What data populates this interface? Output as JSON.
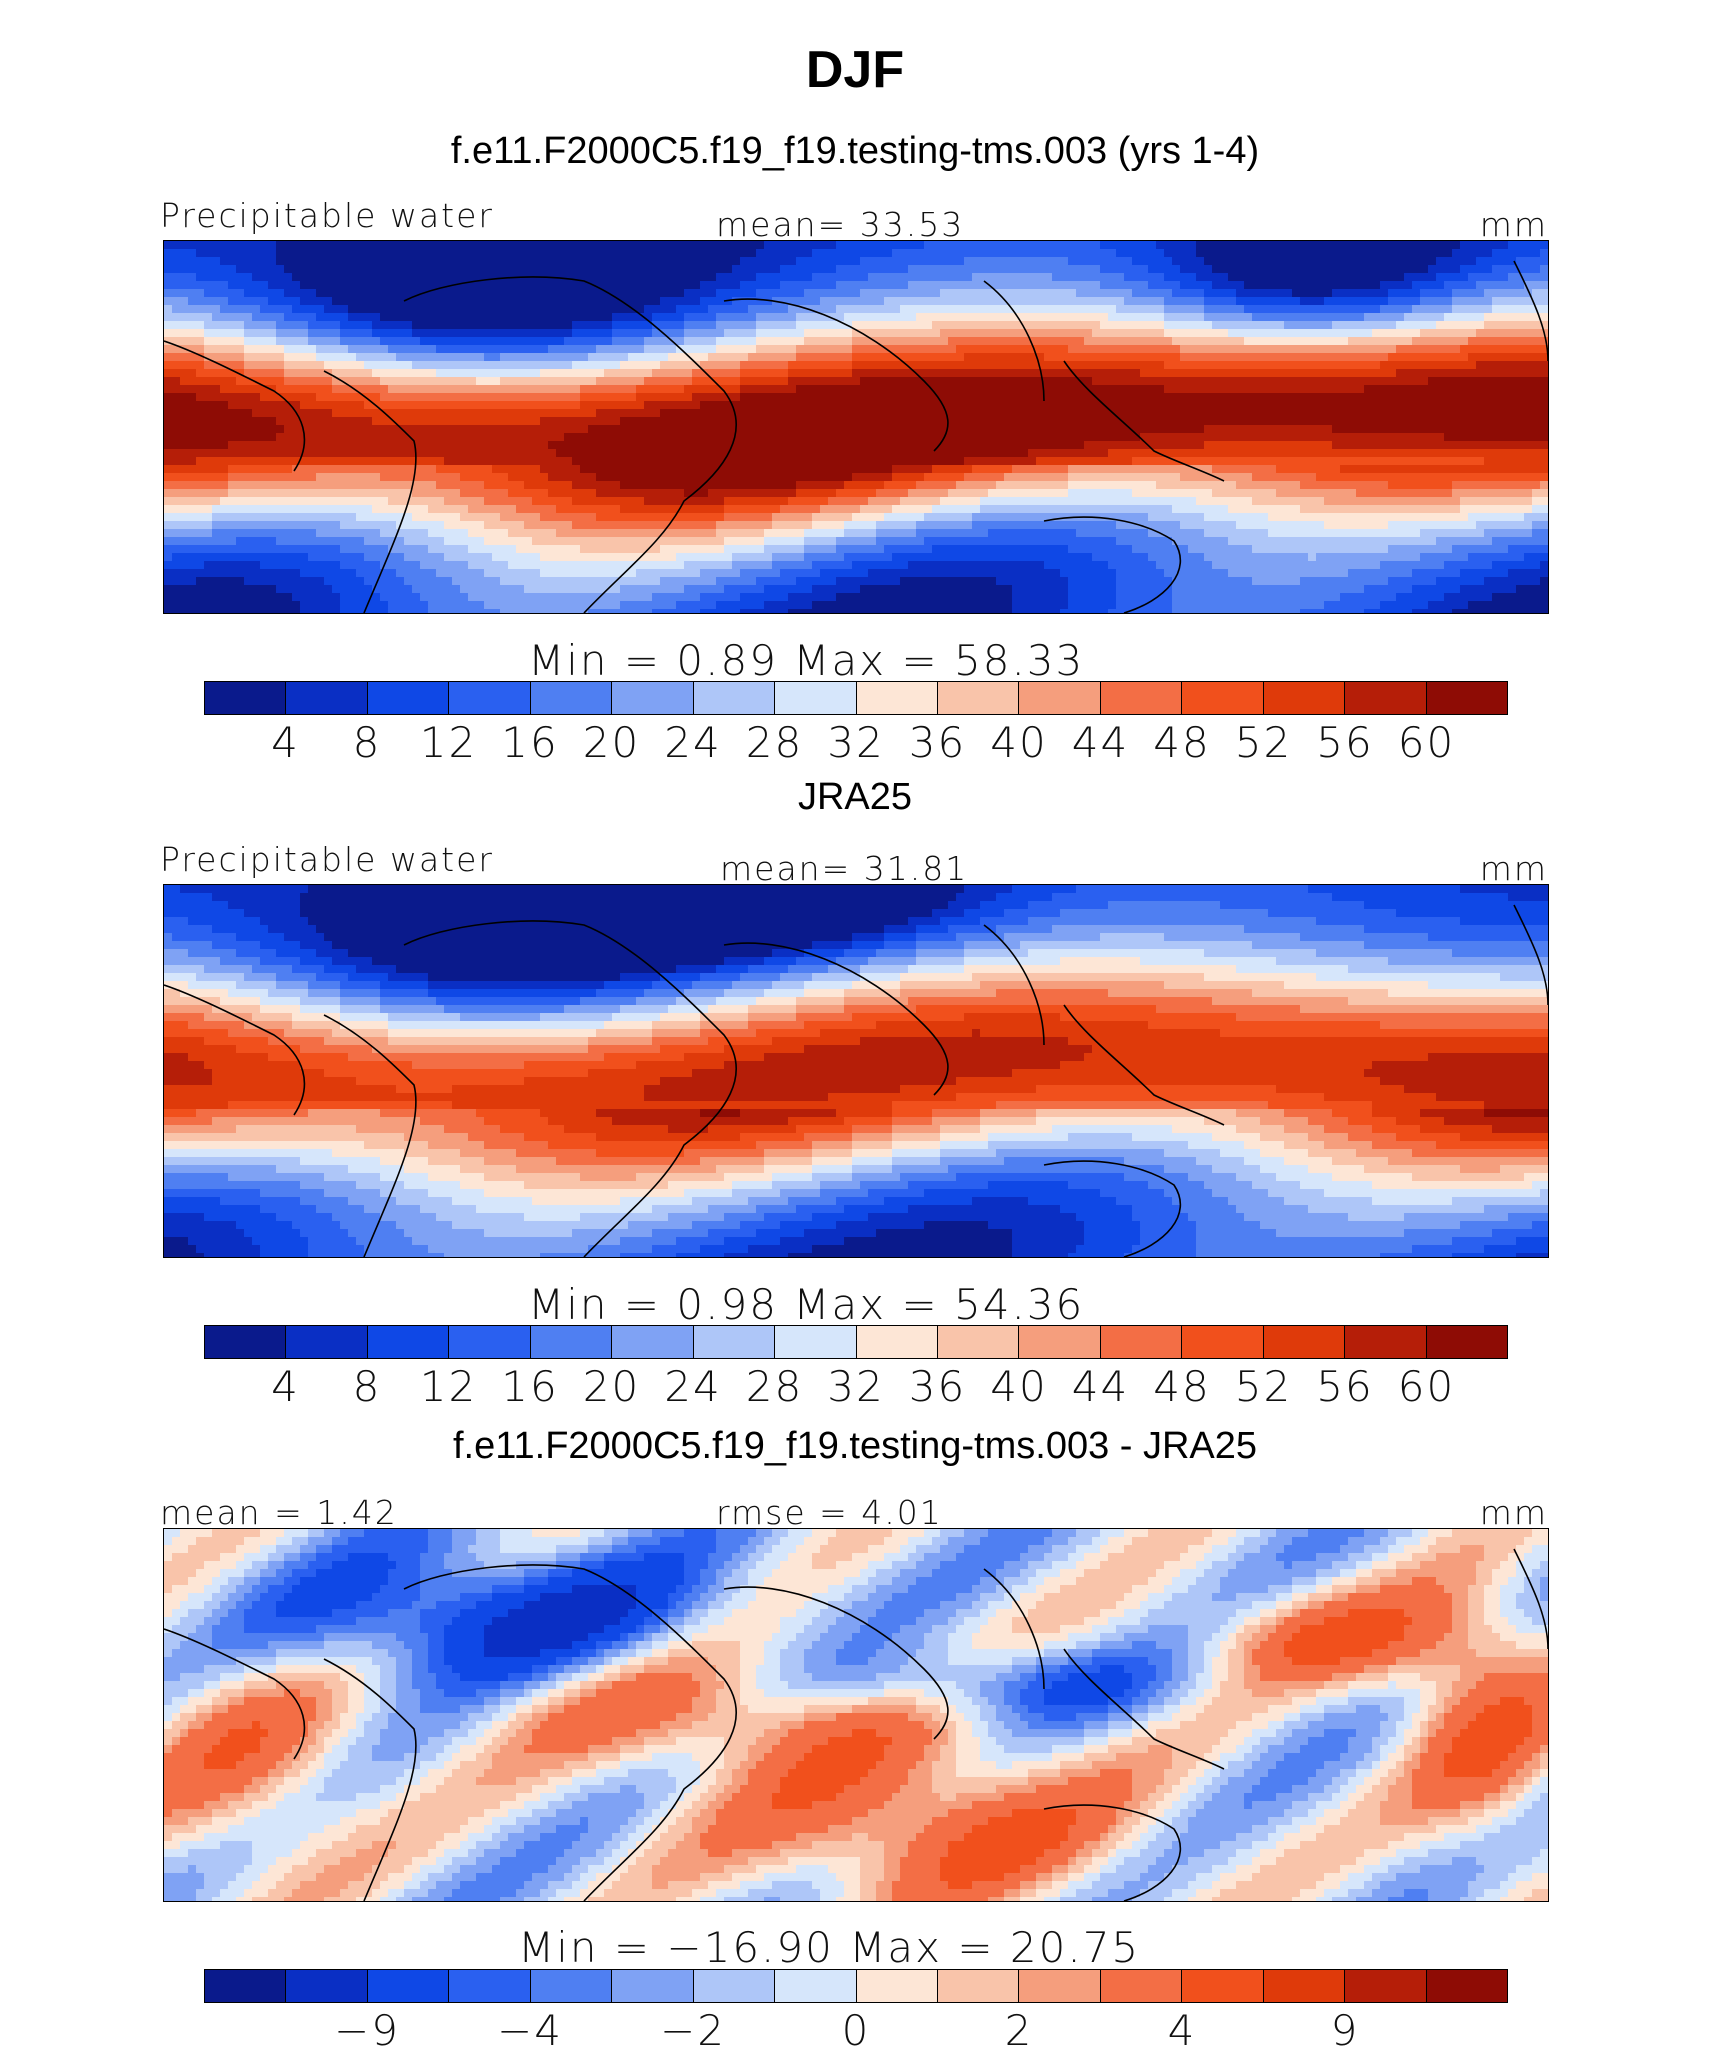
{
  "title": "DJF",
  "colors": [
    "#0a1a8c",
    "#0a2fc4",
    "#0f48e6",
    "#2a60f0",
    "#4f7ff2",
    "#7fa2f4",
    "#aec6f8",
    "#d6e6fb",
    "#fde6d6",
    "#f9c4aa",
    "#f59e7d",
    "#f36e45",
    "#f1501c",
    "#df3a0a",
    "#b51e08",
    "#8e0c05"
  ],
  "chart_data": [
    {
      "type": "heatmap",
      "title": "f.e11.F2000C5.f19_f19.testing-tms.003 (yrs 1-4)",
      "variable": "Precipitable water",
      "stat_label": "mean=  33.53",
      "units": "mm",
      "min": 0.89,
      "max": 58.33,
      "minmax_text": "Min  =     0.89  Max  =   58.33",
      "levels": [
        "4",
        "8",
        "12",
        "16",
        "20",
        "24",
        "28",
        "32",
        "36",
        "40",
        "44",
        "48",
        "52",
        "56",
        "60"
      ]
    },
    {
      "type": "heatmap",
      "title": "JRA25",
      "variable": "Precipitable water",
      "stat_label": "mean=  31.81",
      "units": "mm",
      "min": 0.98,
      "max": 54.36,
      "minmax_text": "Min  =     0.98  Max  =   54.36",
      "levels": [
        "4",
        "8",
        "12",
        "16",
        "20",
        "24",
        "28",
        "32",
        "36",
        "40",
        "44",
        "48",
        "52",
        "56",
        "60"
      ]
    },
    {
      "type": "heatmap",
      "title": "f.e11.F2000C5.f19_f19.testing-tms.003 - JRA25",
      "mean_label": "mean  =   1.42",
      "rmse_label": "rmse  =   4.01",
      "units": "mm",
      "min": -16.9,
      "max": 20.75,
      "minmax_text": "Min  = −16.90  Max  =   20.75",
      "levels": [
        "−9",
        "−4",
        "−2",
        "0",
        "2",
        "4",
        "9"
      ]
    }
  ]
}
